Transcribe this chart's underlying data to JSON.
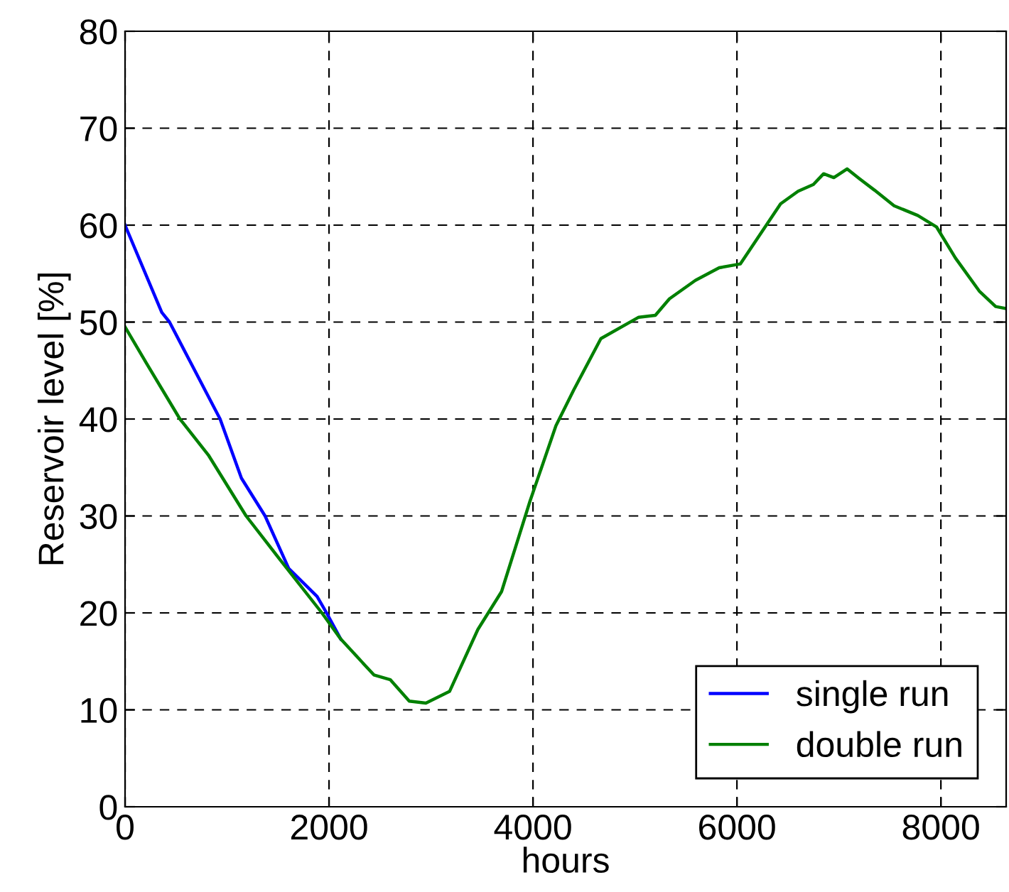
{
  "chart_data": {
    "type": "line",
    "xlabel": "hours",
    "ylabel": "Reservoir level [%]",
    "xlim": [
      0,
      8640
    ],
    "xticks": [
      0,
      2000,
      4000,
      6000,
      8000
    ],
    "ylim": [
      0,
      80
    ],
    "yticks": [
      0,
      10,
      20,
      30,
      40,
      50,
      60,
      70,
      80
    ],
    "grid": true,
    "legend": "bottom right",
    "line_style": "solid",
    "series": [
      {
        "name": "single run",
        "color": "#0000ff",
        "x": [
          0,
          360,
          436,
          932,
          1141,
          1373,
          1604,
          1883,
          1976,
          2115
        ],
        "values": [
          60,
          51,
          50,
          40,
          33.9,
          30,
          24.6,
          21.7,
          20,
          17.3
        ]
      },
      {
        "name": "double run",
        "color": "#008000",
        "x": [
          0,
          190,
          538,
          816,
          1187,
          1512,
          1930,
          2115,
          2440,
          2602,
          2787,
          2950,
          3182,
          3460,
          3692,
          3970,
          4225,
          4400,
          4666,
          5037,
          5200,
          5338,
          5593,
          5826,
          6034,
          6428,
          6600,
          6750,
          6850,
          6950,
          7080,
          7200,
          7350,
          7541,
          7773,
          7958,
          8143,
          8376,
          8537,
          8640
        ],
        "values": [
          49.5,
          46.1,
          40,
          36.3,
          30,
          25.6,
          20,
          17.3,
          13.6,
          13.1,
          10.9,
          10.7,
          11.9,
          18.3,
          22.2,
          31.5,
          39.3,
          43,
          48.3,
          50.5,
          50.7,
          52.4,
          54.3,
          55.6,
          56,
          62.2,
          63.5,
          64.2,
          65.3,
          64.9,
          65.8,
          64.8,
          63.6,
          62,
          61,
          59.8,
          56.6,
          53.2,
          51.6,
          51.4
        ]
      }
    ]
  }
}
